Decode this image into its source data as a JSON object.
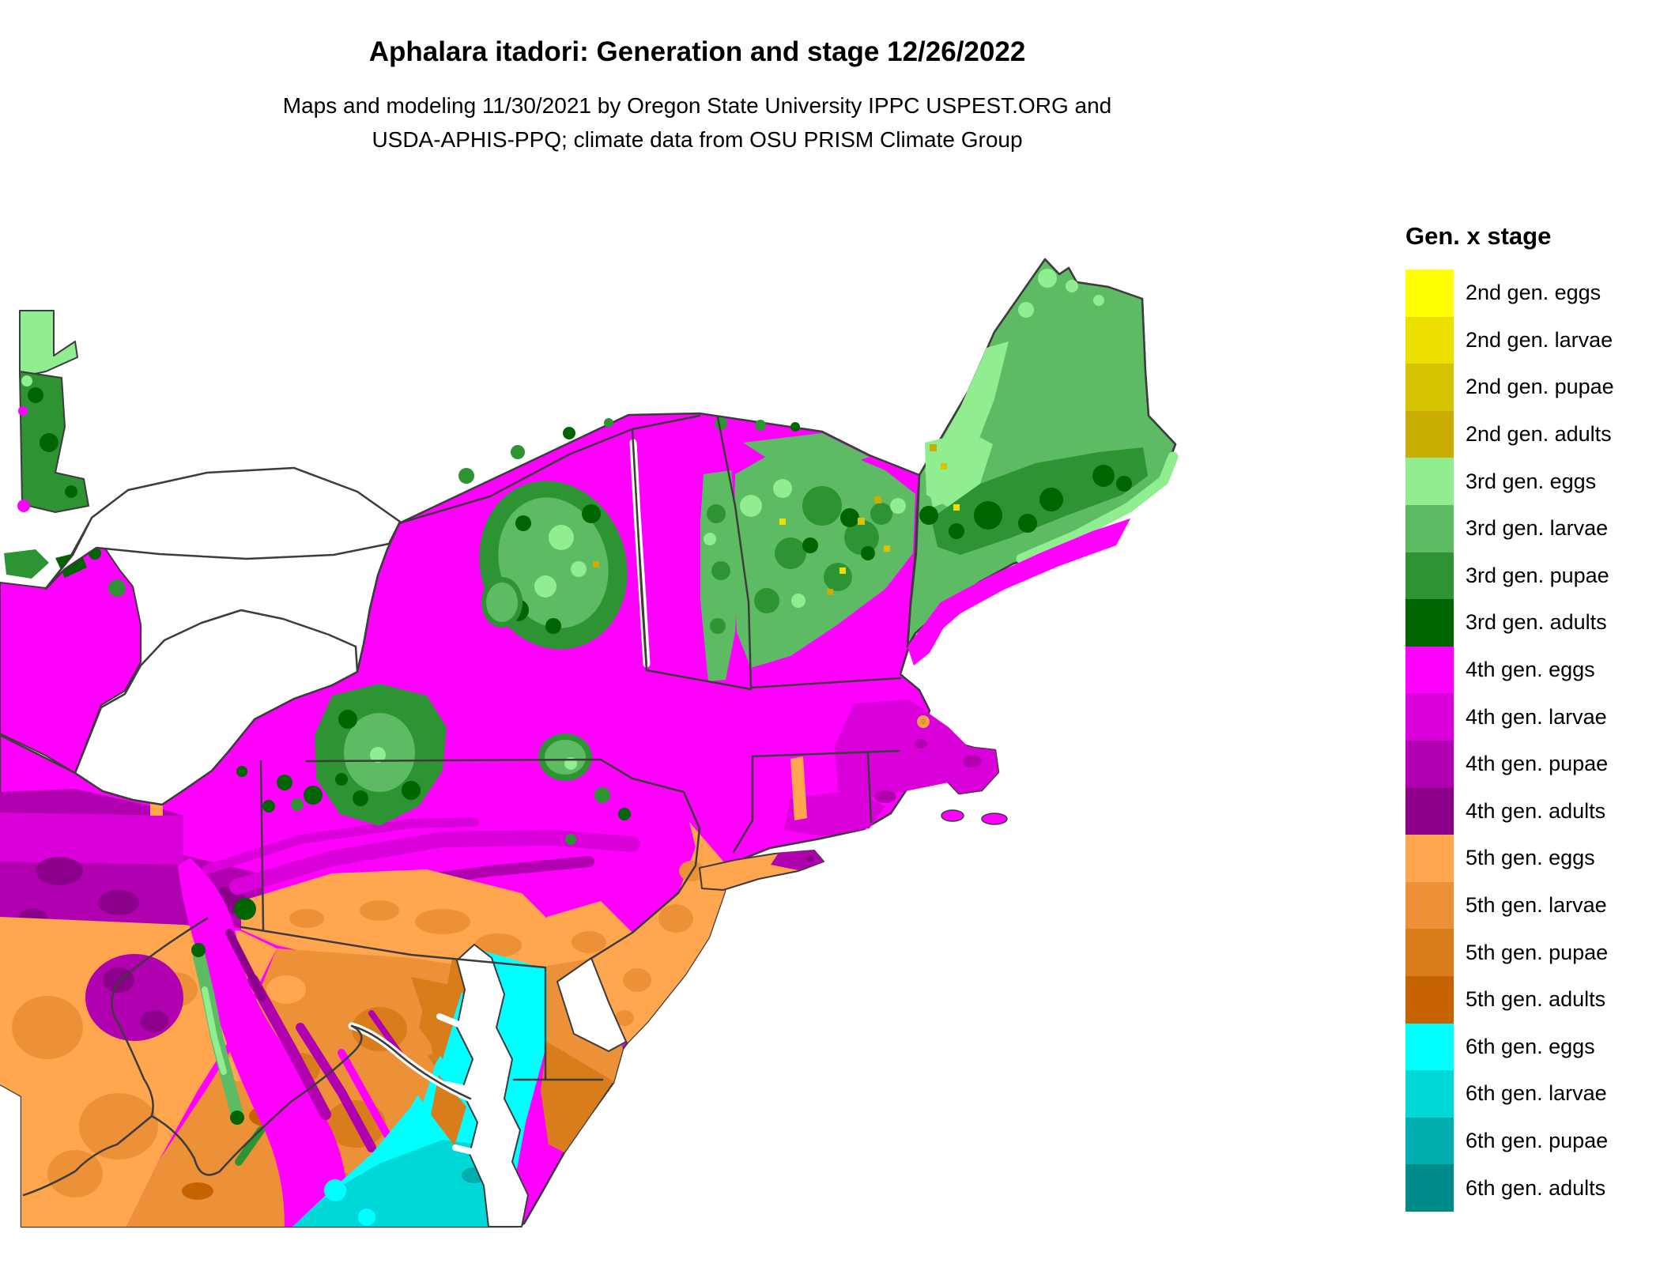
{
  "header": {
    "title": "Aphalara itadori: Generation and stage 12/26/2022",
    "subtitle_line1": "Maps and modeling 11/30/2021 by Oregon State University IPPC USPEST.ORG and",
    "subtitle_line2": "USDA-APHIS-PPQ; climate data from OSU PRISM Climate Group"
  },
  "legend": {
    "title": "Gen. x stage",
    "items": [
      {
        "key": "g2e",
        "label": "2nd gen. eggs",
        "color": "#FFFF00"
      },
      {
        "key": "g2l",
        "label": "2nd gen. larvae",
        "color": "#EBE000"
      },
      {
        "key": "g2p",
        "label": "2nd gen. pupae",
        "color": "#D7C400"
      },
      {
        "key": "g2a",
        "label": "2nd gen. adults",
        "color": "#C9AD00"
      },
      {
        "key": "g3e",
        "label": "3rd gen. eggs",
        "color": "#90EE90"
      },
      {
        "key": "g3l",
        "label": "3rd gen. larvae",
        "color": "#5CBB63"
      },
      {
        "key": "g3p",
        "label": "3rd gen. pupae",
        "color": "#2E9333"
      },
      {
        "key": "g3a",
        "label": "3rd gen. adults",
        "color": "#006400"
      },
      {
        "key": "g4e",
        "label": "4th gen. eggs",
        "color": "#FF00FF"
      },
      {
        "key": "g4l",
        "label": "4th gen. larvae",
        "color": "#D900D9"
      },
      {
        "key": "g4p",
        "label": "4th gen. pupae",
        "color": "#B000B0"
      },
      {
        "key": "g4a",
        "label": "4th gen. adults",
        "color": "#8B008B"
      },
      {
        "key": "g5e",
        "label": "5th gen. eggs",
        "color": "#FFA64F"
      },
      {
        "key": "g5l",
        "label": "5th gen. larvae",
        "color": "#EC9138"
      },
      {
        "key": "g5p",
        "label": "5th gen. pupae",
        "color": "#D97C1C"
      },
      {
        "key": "g5a",
        "label": "5th gen. adults",
        "color": "#C66300"
      },
      {
        "key": "g6e",
        "label": "6th gen. eggs",
        "color": "#00FFFF"
      },
      {
        "key": "g6l",
        "label": "6th gen. larvae",
        "color": "#00D8D8"
      },
      {
        "key": "g6p",
        "label": "6th gen. pupae",
        "color": "#00AEB0"
      },
      {
        "key": "g6a",
        "label": "6th gen. adults",
        "color": "#008B8B"
      }
    ]
  },
  "map": {
    "border_color": "#3C3C3C",
    "water_color": "#FFFFFF",
    "depicted_features": [
      "northeastern United States phenology raster",
      "Lake Ontario",
      "Lake Erie",
      "Lake Champlain",
      "Chesapeake Bay",
      "Delaware Bay",
      "Atlantic coastline",
      "state boundaries",
      "US-Canada boundary"
    ]
  }
}
